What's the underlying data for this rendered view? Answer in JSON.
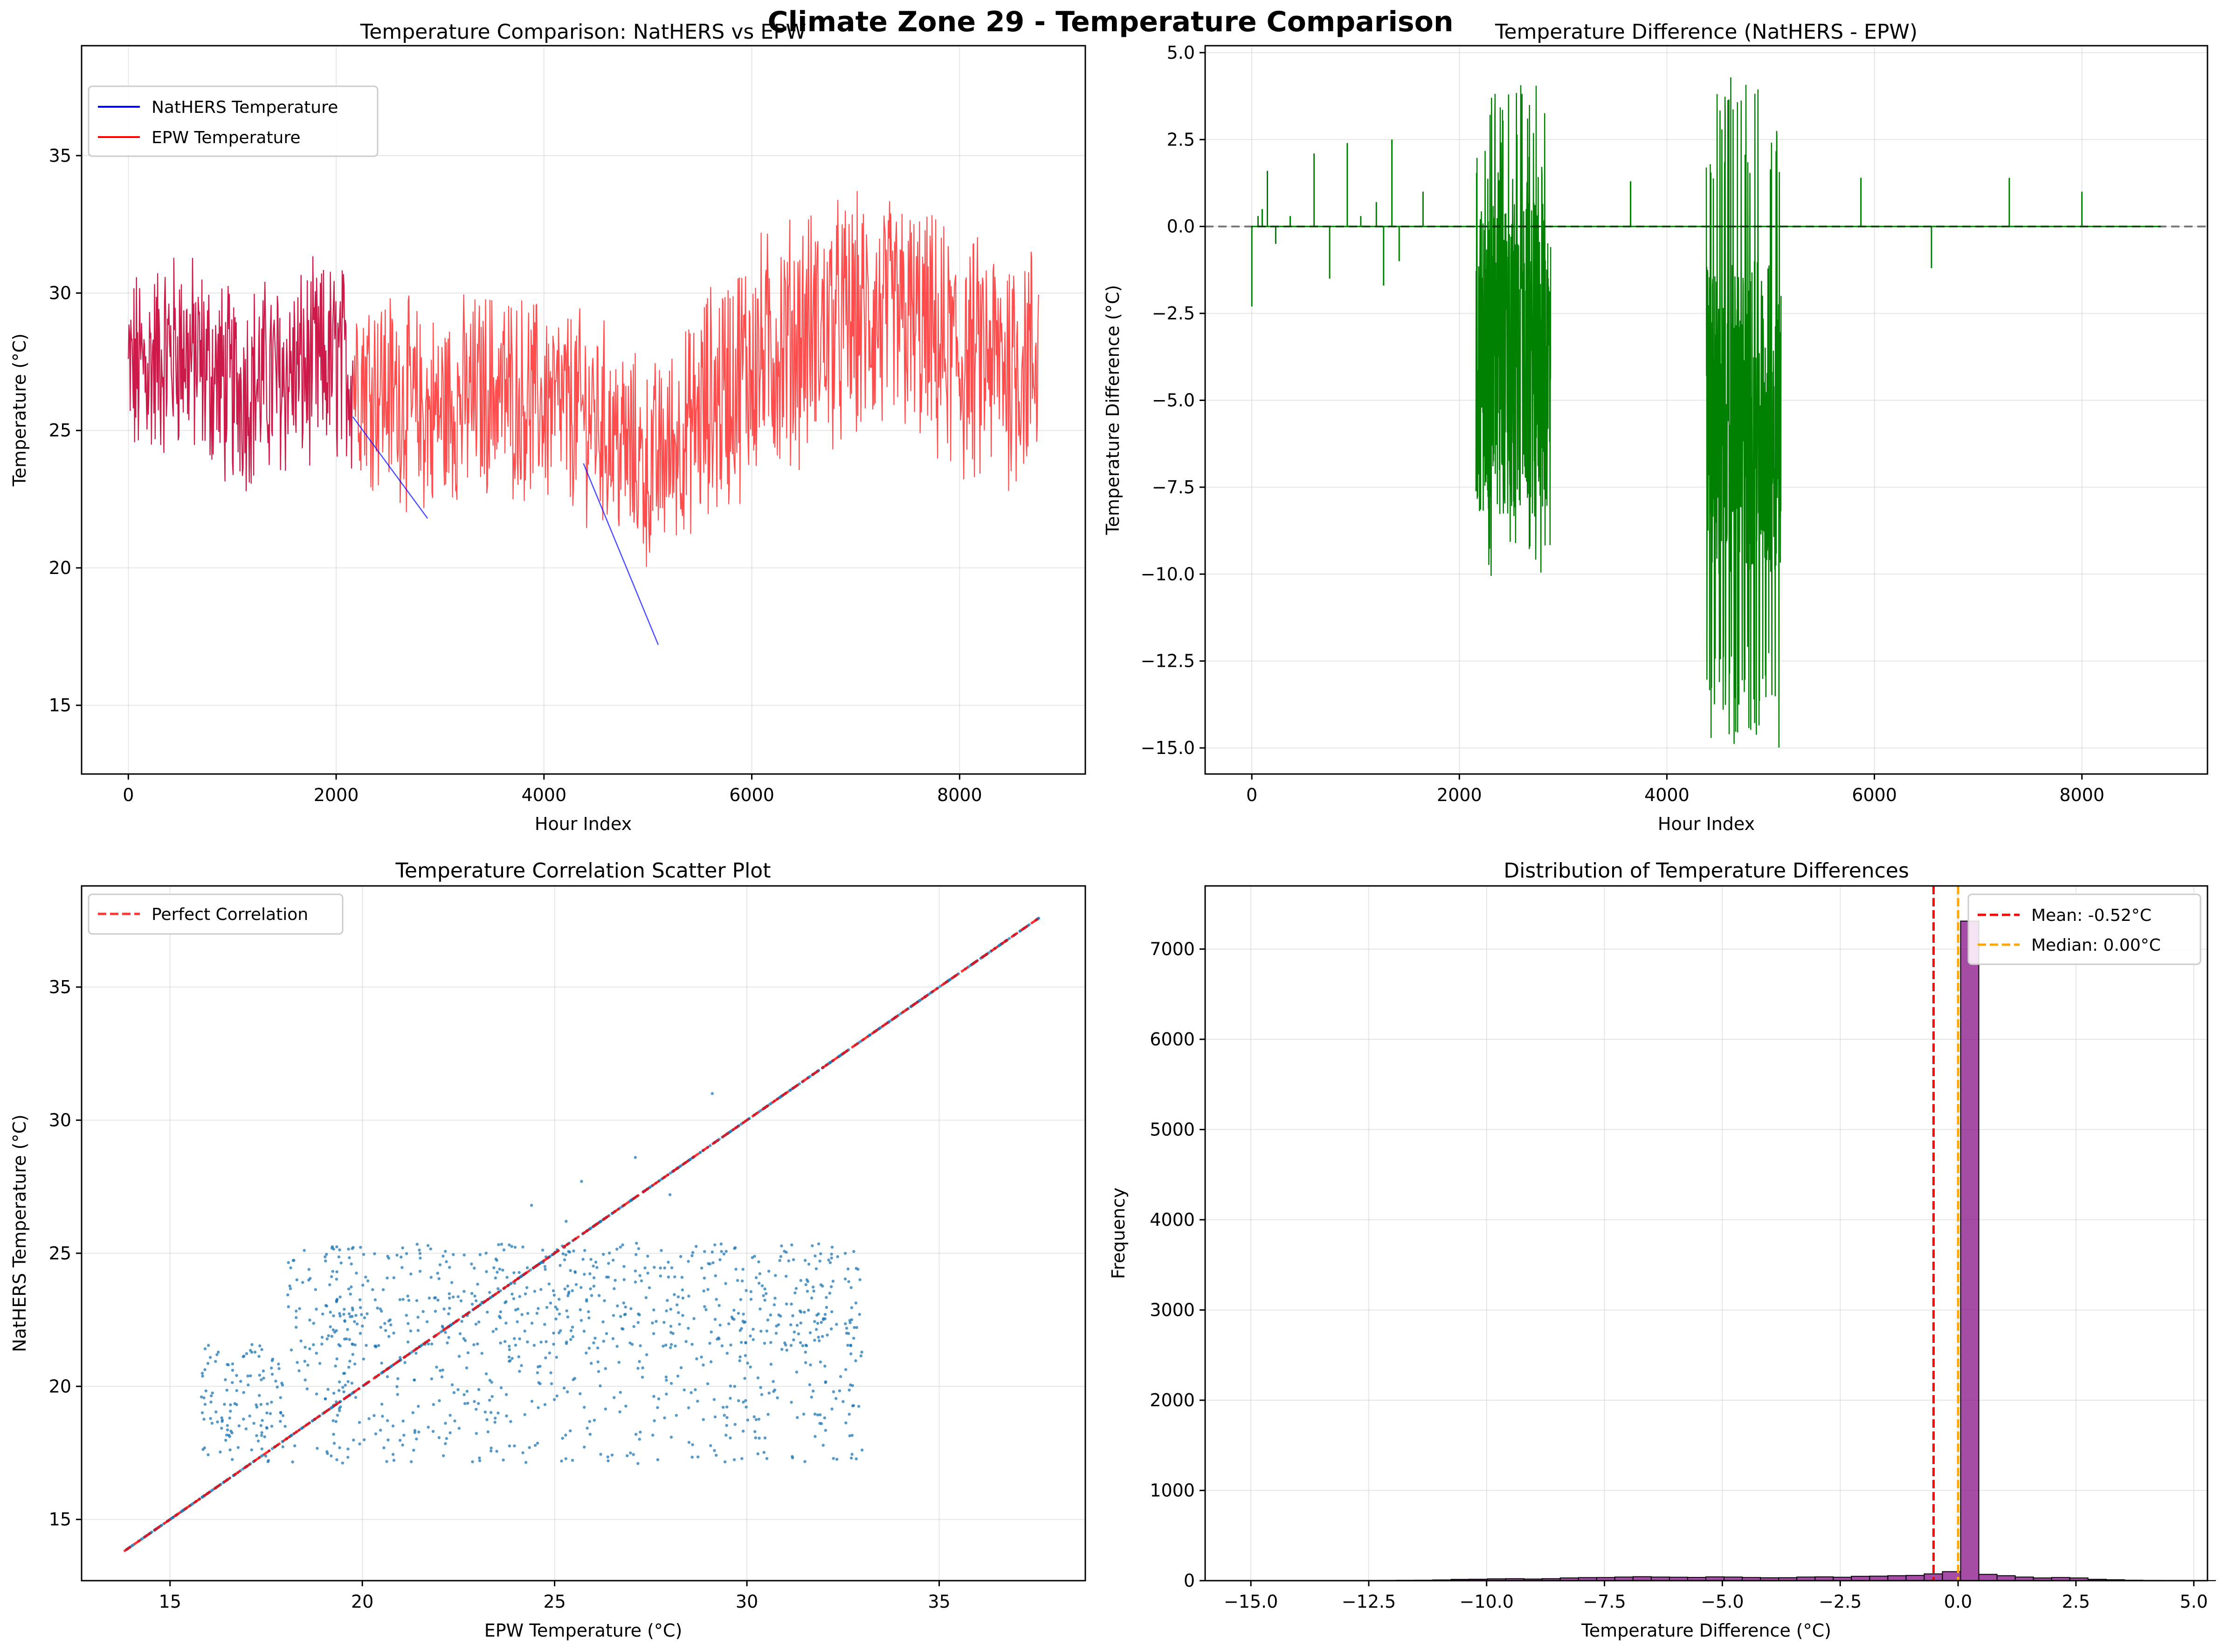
{
  "figure": {
    "title": "Climate Zone 29 - Temperature Comparison"
  },
  "chart_data": [
    {
      "type": "line",
      "title": "Temperature Comparison: NatHERS vs EPW",
      "xlabel": "Hour Index",
      "ylabel": "Temperature (°C)",
      "xlim": [
        -450,
        9210
      ],
      "ylim": [
        12.5,
        39.0
      ],
      "xticks": [
        0,
        2000,
        4000,
        6000,
        8000
      ],
      "yticks": [
        15,
        20,
        25,
        30,
        35
      ],
      "grid": true,
      "legend": "top-left",
      "series": [
        {
          "name": "NatHERS Temperature",
          "color": "#0000ff",
          "approx_profile": [
            [
              0,
              27
            ],
            [
              500,
              28
            ],
            [
              1000,
              26.5
            ],
            [
              1500,
              27
            ],
            [
              2000,
              27.5
            ],
            [
              2160,
              25.5
            ],
            [
              2880,
              21.8
            ],
            [
              3500,
              26.5
            ],
            [
              4000,
              26
            ],
            [
              4380,
              23.8
            ],
            [
              5100,
              17.2
            ],
            [
              5500,
              25.5
            ],
            [
              6000,
              27.5
            ],
            [
              6500,
              28.5
            ],
            [
              7000,
              29
            ],
            [
              7500,
              29
            ],
            [
              8000,
              27.5
            ],
            [
              8760,
              27.5
            ]
          ]
        },
        {
          "name": "EPW Temperature",
          "color": "#ff0000",
          "approx_profile": [
            [
              0,
              27
            ],
            [
              500,
              28
            ],
            [
              1000,
              26.5
            ],
            [
              1500,
              27
            ],
            [
              2000,
              27.5
            ],
            [
              2500,
              26.5
            ],
            [
              2880,
              25.5
            ],
            [
              3500,
              26.5
            ],
            [
              4000,
              26
            ],
            [
              4500,
              25.5
            ],
            [
              5000,
              23.5
            ],
            [
              5500,
              25.5
            ],
            [
              6000,
              27.5
            ],
            [
              6500,
              28.5
            ],
            [
              7000,
              29
            ],
            [
              7500,
              29
            ],
            [
              8000,
              27.5
            ],
            [
              8760,
              27.5
            ]
          ]
        }
      ]
    },
    {
      "type": "line",
      "title": "Temperature Difference (NatHERS - EPW)",
      "xlabel": "Hour Index",
      "ylabel": "Temperature Difference (°C)",
      "xlim": [
        -450,
        9210
      ],
      "ylim": [
        -15.75,
        5.2
      ],
      "xticks": [
        0,
        2000,
        4000,
        6000,
        8000
      ],
      "yticks": [
        5.0,
        2.5,
        0.0,
        -2.5,
        -5.0,
        -7.5,
        -10.0,
        -12.5,
        -15.0
      ],
      "ytick_labels": [
        "5.0",
        "2.5",
        "0.0",
        "−2.5",
        "−5.0",
        "−7.5",
        "−10.0",
        "−12.5",
        "−15.0"
      ],
      "grid": true,
      "reference_line": 0,
      "series": [
        {
          "name": "",
          "color": "#008000",
          "spikes": [
            [
              0,
              -2.3
            ],
            [
              60,
              0.3
            ],
            [
              100,
              0.5
            ],
            [
              150,
              1.6
            ],
            [
              230,
              -0.5
            ],
            [
              370,
              0.3
            ],
            [
              600,
              2.1
            ],
            [
              750,
              -1.5
            ],
            [
              920,
              2.4
            ],
            [
              1050,
              0.3
            ],
            [
              1200,
              0.7
            ],
            [
              1270,
              -1.7
            ],
            [
              1350,
              2.5
            ],
            [
              1420,
              -1.0
            ],
            [
              1650,
              1.0
            ],
            [
              3650,
              1.3
            ],
            [
              5870,
              1.4
            ],
            [
              6550,
              -1.2
            ],
            [
              7300,
              1.4
            ],
            [
              8000,
              1.0
            ]
          ],
          "dense_ranges": [
            {
              "x": [
                2160,
                2880
              ],
              "min": -10.1,
              "max": 4.2,
              "mean": -3.8
            },
            {
              "x": [
                4380,
                5100
              ],
              "min": -15.0,
              "max": 4.3,
              "mean": -5.5
            }
          ]
        }
      ]
    },
    {
      "type": "scatter",
      "title": "Temperature Correlation Scatter Plot",
      "xlabel": "EPW Temperature (°C)",
      "ylabel": "NatHERS Temperature (°C)",
      "xlim": [
        12.7,
        38.8
      ],
      "ylim": [
        12.7,
        38.8
      ],
      "xticks": [
        15,
        20,
        25,
        30,
        35
      ],
      "yticks": [
        15,
        20,
        25,
        30,
        35
      ],
      "grid": true,
      "legend": "top-left",
      "series": [
        {
          "name": "Perfect Correlation",
          "color": "#ff0000",
          "style": "dashed",
          "x": [
            13.8,
            37.6
          ],
          "y": [
            13.8,
            37.6
          ]
        },
        {
          "name": "",
          "color": "#1f77b4",
          "diagonal_range": [
            13.8,
            37.6
          ],
          "cloud": {
            "x": [
              15.8,
              33.2
            ],
            "y": [
              17.1,
              25.4
            ]
          },
          "outliers": [
            [
              27.1,
              28.6
            ],
            [
              29.1,
              31.0
            ],
            [
              25.7,
              27.7
            ],
            [
              25.3,
              26.2
            ],
            [
              24.4,
              26.8
            ],
            [
              28.0,
              27.2
            ]
          ]
        }
      ]
    },
    {
      "type": "bar",
      "title": "Distribution of Temperature Differences",
      "xlabel": "Temperature Difference (°C)",
      "ylabel": "Frequency",
      "xlim": [
        -15.97,
        5.29
      ],
      "ylim": [
        0,
        7700
      ],
      "xticks": [
        -15.0,
        -12.5,
        -10.0,
        -7.5,
        -5.0,
        -2.5,
        0.0,
        2.5,
        5.0
      ],
      "xtick_labels": [
        "−15.0",
        "−12.5",
        "−10.0",
        "−7.5",
        "−5.0",
        "−2.5",
        "0.0",
        "2.5",
        "5.0"
      ],
      "yticks": [
        0,
        1000,
        2000,
        3000,
        4000,
        5000,
        6000,
        7000
      ],
      "grid": true,
      "legend": "top-right",
      "bin_start": -15.0,
      "bin_width": 0.386,
      "values": [
        0,
        0,
        0,
        0,
        0,
        0,
        0,
        3,
        4,
        5,
        8,
        14,
        16,
        20,
        22,
        18,
        22,
        30,
        34,
        35,
        40,
        44,
        40,
        38,
        36,
        42,
        40,
        35,
        32,
        33,
        40,
        42,
        38,
        48,
        50,
        55,
        58,
        75,
        100,
        7310,
        70,
        55,
        40,
        30,
        35,
        30,
        15,
        10,
        5,
        3,
        2,
        1,
        1,
        0,
        0
      ],
      "bar_color": "#800080",
      "lines": [
        {
          "name": "Mean: -0.52°C",
          "value": -0.52,
          "color": "#ff0000",
          "style": "dashed"
        },
        {
          "name": "Median: 0.00°C",
          "value": 0.0,
          "color": "#ffa500",
          "style": "dashed"
        }
      ]
    }
  ]
}
